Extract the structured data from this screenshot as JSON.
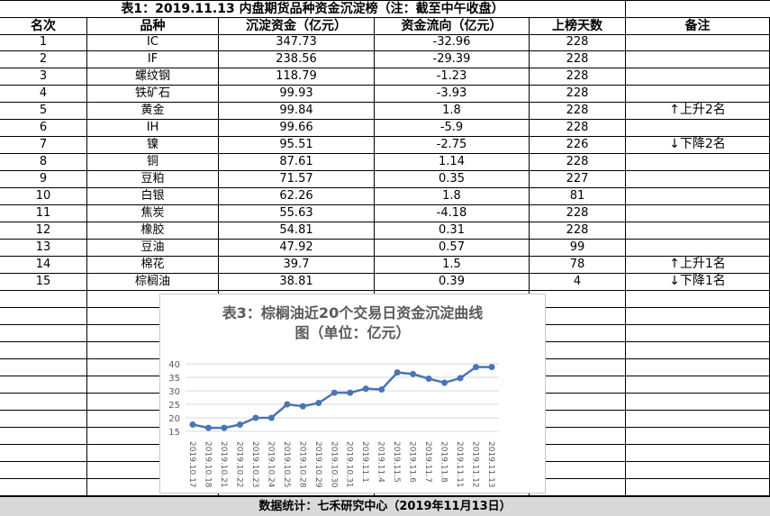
{
  "title": "表1：2019.11.13 内盘期货品种资金沉淀榜（注：截至中午收盘）",
  "headers": {
    "rank": "名次",
    "variety": "品种",
    "deposit": "沉淀资金（亿元）",
    "flow": "资金流向（亿元）",
    "days": "上榜天数",
    "note": "备注"
  },
  "rows": [
    {
      "rank": "1",
      "variety": "IC",
      "deposit": "347.73",
      "flow": "-32.96",
      "days": "228",
      "note": ""
    },
    {
      "rank": "2",
      "variety": "IF",
      "deposit": "238.56",
      "flow": "-29.39",
      "days": "228",
      "note": ""
    },
    {
      "rank": "3",
      "variety": "螺纹钢",
      "deposit": "118.79",
      "flow": "-1.23",
      "days": "228",
      "note": ""
    },
    {
      "rank": "4",
      "variety": "铁矿石",
      "deposit": "99.93",
      "flow": "-3.93",
      "days": "228",
      "note": ""
    },
    {
      "rank": "5",
      "variety": "黄金",
      "deposit": "99.84",
      "flow": "1.8",
      "days": "228",
      "note": "↑上升2名"
    },
    {
      "rank": "6",
      "variety": "IH",
      "deposit": "99.66",
      "flow": "-5.9",
      "days": "228",
      "note": ""
    },
    {
      "rank": "7",
      "variety": "镍",
      "deposit": "95.51",
      "flow": "-2.75",
      "days": "226",
      "note": "↓下降2名"
    },
    {
      "rank": "8",
      "variety": "铜",
      "deposit": "87.61",
      "flow": "1.14",
      "days": "228",
      "note": ""
    },
    {
      "rank": "9",
      "variety": "豆粕",
      "deposit": "71.57",
      "flow": "0.35",
      "days": "227",
      "note": ""
    },
    {
      "rank": "10",
      "variety": "白银",
      "deposit": "62.26",
      "flow": "1.8",
      "days": "81",
      "note": ""
    },
    {
      "rank": "11",
      "variety": "焦炭",
      "deposit": "55.63",
      "flow": "-4.18",
      "days": "228",
      "note": ""
    },
    {
      "rank": "12",
      "variety": "橡胶",
      "deposit": "54.81",
      "flow": "0.31",
      "days": "228",
      "note": ""
    },
    {
      "rank": "13",
      "variety": "豆油",
      "deposit": "47.92",
      "flow": "0.57",
      "days": "99",
      "note": ""
    },
    {
      "rank": "14",
      "variety": "棉花",
      "deposit": "39.7",
      "flow": "1.5",
      "days": "78",
      "note": "↑上升1名"
    },
    {
      "rank": "15",
      "variety": "棕榈油",
      "deposit": "38.81",
      "flow": "0.39",
      "days": "4",
      "note": "↓下降1名"
    }
  ],
  "footer": "数据统计：七禾研究中心（2019年11月13日）",
  "chart_data": {
    "type": "line",
    "title": "表3：棕榈油近20个交易日资金沉淀曲线图（单位：亿元）",
    "title_lines": [
      "表3：棕榈油近20个交易日资金沉淀曲线",
      "图（单位：亿元）"
    ],
    "categories": [
      "2019.10.17",
      "2019.10.18",
      "2019.10.21",
      "2019.10.22",
      "2019.10.23",
      "2019.10.24",
      "2019.10.25",
      "2019.10.28",
      "2019.10.29",
      "2019.10.30",
      "2019.10.31",
      "2019.11.1",
      "2019.11.4",
      "2019.11.5",
      "2019.11.6",
      "2019.11.7",
      "2019.11.8",
      "2019.11.11",
      "2019.11.12",
      "2019.11.13"
    ],
    "values": [
      17.5,
      16.3,
      16.3,
      17.5,
      20.0,
      20.0,
      25.0,
      24.3,
      25.5,
      29.3,
      29.3,
      30.8,
      30.5,
      36.8,
      36.2,
      34.5,
      33.0,
      34.7,
      38.8,
      38.81
    ],
    "ylim": [
      15,
      40
    ],
    "yticks": [
      15,
      20,
      25,
      30,
      35,
      40
    ],
    "grid": true,
    "color": "#4a74b4"
  }
}
